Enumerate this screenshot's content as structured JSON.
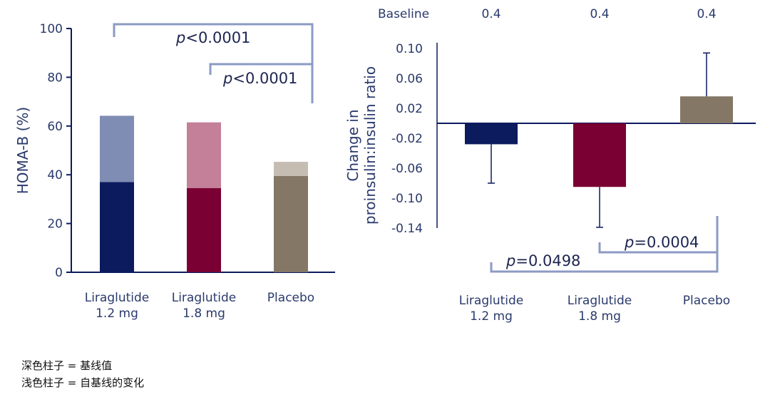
{
  "chart_data": [
    {
      "type": "bar",
      "stacked": true,
      "ylabel": "HOMA-B (%)",
      "ylim": [
        0,
        100
      ],
      "yticks": [
        0,
        20,
        40,
        60,
        80,
        100
      ],
      "categories": [
        "Liraglutide\n1.2 mg",
        "Liraglutide\n1.8 mg",
        "Placebo"
      ],
      "series": [
        {
          "values": [
            37,
            34.5,
            39.5
          ]
        },
        {
          "values": [
            27.2,
            27,
            5.8
          ]
        }
      ],
      "annotations": [
        {
          "from": 0,
          "to": 2,
          "p_prefix": "p",
          "p_text": "<0.0001"
        },
        {
          "from": 1,
          "to": 2,
          "p_prefix": "p",
          "p_text": "<0.0001"
        }
      ],
      "colors": {
        "dark": [
          "#0c1b5e",
          "#7a0033",
          "#847766"
        ],
        "light": [
          "#7f8db4",
          "#c47f99",
          "#c5bdb2"
        ],
        "axis": "#0c1b5e",
        "bracket": "#8c9bc4"
      }
    },
    {
      "type": "bar",
      "ylabel": "Change in\nproinsulin:insulin ratio",
      "ylim": [
        -0.14,
        0.1
      ],
      "yticks": [
        "0.10",
        "0.06",
        "0.02",
        "-0.02",
        "-0.06",
        "-0.10",
        "-0.14"
      ],
      "categories": [
        "Liraglutide\n1.2 mg",
        "Liraglutide\n1.8 mg",
        "Placebo"
      ],
      "values": [
        -0.028,
        -0.085,
        0.036
      ],
      "error": [
        0.052,
        0.054,
        0.058
      ],
      "baseline_label": "Baseline",
      "baseline_values": [
        "0.4",
        "0.4",
        "0.4"
      ],
      "annotations": [
        {
          "from": 0,
          "to": 2,
          "p_prefix": "p",
          "p_text": "=0.0498"
        },
        {
          "from": 1,
          "to": 2,
          "p_prefix": "p",
          "p_text": "=0.0004"
        }
      ],
      "colors": {
        "bars": [
          "#0c1b5e",
          "#7a0033",
          "#847766"
        ],
        "axis": "#0c1b5e",
        "bracket": "#8c9bc4"
      }
    }
  ],
  "legend": [
    "深色柱子 = 基线值",
    "浅色柱子 = 自基线的变化"
  ]
}
